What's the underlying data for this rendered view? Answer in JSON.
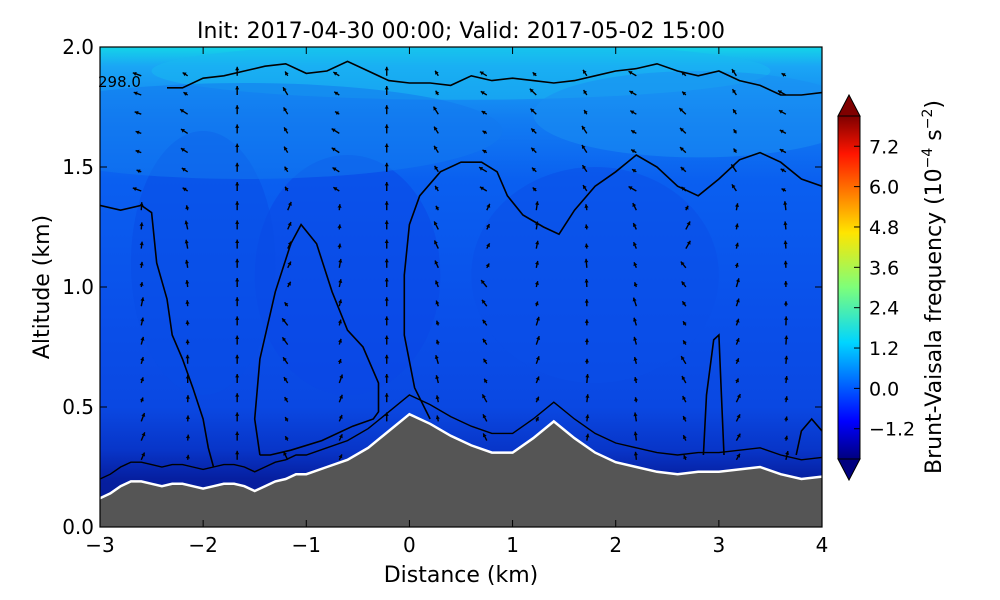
{
  "chart_data": {
    "type": "heatmap",
    "title": "Init: 2017-04-30 00:00; Valid: 2017-05-02 15:00",
    "xlabel": "Distance (km)",
    "ylabel": "Altitude (km)",
    "xlim": [
      -3,
      4
    ],
    "ylim": [
      0.0,
      2.0
    ],
    "xticks": [
      -3,
      -2,
      -1,
      0,
      1,
      2,
      3,
      4
    ],
    "yticks": [
      0.0,
      0.5,
      1.0,
      1.5,
      2.0
    ],
    "xtick_labels": [
      "−3",
      "−2",
      "−1",
      "0",
      "1",
      "2",
      "3",
      "4"
    ],
    "ytick_labels": [
      "0.0",
      "0.5",
      "1.0",
      "1.5",
      "2.0"
    ],
    "colorbar": {
      "label": "Brunt-Vaisala frequency",
      "units": "(10",
      "units_exp1": "−4",
      "units_mid": " s",
      "units_exp2": "−2",
      "units_end": ")",
      "range": [
        -2.1,
        8.1
      ],
      "ticks": [
        7.2,
        6.0,
        4.8,
        3.6,
        2.4,
        1.2,
        0.0,
        -1.2
      ],
      "tick_labels": [
        "7.2",
        "6.0",
        "4.8",
        "3.6",
        "2.4",
        "1.2",
        "0.0",
        "−1.2"
      ],
      "extend": "both",
      "colormap": "jet"
    },
    "contour_label": "298.0",
    "terrain": {
      "color": "#555555",
      "x": [
        -3.0,
        -2.9,
        -2.8,
        -2.7,
        -2.6,
        -2.5,
        -2.4,
        -2.3,
        -2.2,
        -2.1,
        -2.0,
        -1.9,
        -1.8,
        -1.7,
        -1.6,
        -1.5,
        -1.4,
        -1.3,
        -1.2,
        -1.1,
        -1.0,
        -0.8,
        -0.6,
        -0.4,
        -0.2,
        0.0,
        0.2,
        0.4,
        0.6,
        0.8,
        1.0,
        1.2,
        1.4,
        1.6,
        1.8,
        2.0,
        2.2,
        2.4,
        2.6,
        2.8,
        3.0,
        3.2,
        3.4,
        3.6,
        3.8,
        4.0
      ],
      "y": [
        0.12,
        0.14,
        0.17,
        0.19,
        0.19,
        0.18,
        0.17,
        0.18,
        0.18,
        0.17,
        0.16,
        0.17,
        0.18,
        0.18,
        0.17,
        0.15,
        0.17,
        0.19,
        0.2,
        0.22,
        0.22,
        0.25,
        0.28,
        0.33,
        0.4,
        0.47,
        0.43,
        0.38,
        0.34,
        0.31,
        0.31,
        0.37,
        0.44,
        0.37,
        0.31,
        0.27,
        0.25,
        0.23,
        0.22,
        0.23,
        0.23,
        0.24,
        0.25,
        0.22,
        0.2,
        0.21
      ]
    },
    "contours": [
      {
        "x": [
          -2.35,
          -2.2,
          -2.0,
          -1.8,
          -1.6,
          -1.4,
          -1.2,
          -1.0,
          -0.8,
          -0.6,
          -0.4,
          -0.2,
          0.0,
          0.2,
          0.4,
          0.6,
          0.8,
          1.0,
          1.2,
          1.4,
          1.6,
          1.8,
          2.0,
          2.2,
          2.4,
          2.6,
          2.8,
          3.0,
          3.2,
          3.4,
          3.6,
          3.8,
          4.0
        ],
        "y": [
          1.83,
          1.83,
          1.87,
          1.88,
          1.9,
          1.92,
          1.93,
          1.89,
          1.9,
          1.94,
          1.9,
          1.86,
          1.85,
          1.85,
          1.84,
          1.88,
          1.86,
          1.87,
          1.86,
          1.85,
          1.86,
          1.88,
          1.9,
          1.91,
          1.93,
          1.9,
          1.88,
          1.9,
          1.86,
          1.84,
          1.8,
          1.8,
          1.81
        ]
      },
      {
        "x": [
          -3.0,
          -2.8,
          -2.6,
          -2.5,
          -2.45,
          -2.35,
          -2.3,
          -2.2,
          -2.1,
          -2.0,
          -1.95,
          -1.9
        ],
        "y": [
          1.34,
          1.32,
          1.34,
          1.31,
          1.1,
          0.95,
          0.8,
          0.7,
          0.58,
          0.45,
          0.33,
          0.25
        ]
      },
      {
        "x": [
          -1.45,
          -1.5,
          -1.45,
          -1.3,
          -1.15,
          -1.05,
          -0.9,
          -0.75,
          -0.6,
          -0.45,
          -0.3,
          -0.3,
          -0.35,
          -0.55,
          -0.85,
          -1.15,
          -1.35,
          -1.45
        ],
        "y": [
          0.3,
          0.45,
          0.7,
          0.98,
          1.18,
          1.26,
          1.18,
          0.98,
          0.82,
          0.75,
          0.6,
          0.48,
          0.45,
          0.42,
          0.36,
          0.32,
          0.3,
          0.3
        ]
      },
      {
        "x": [
          0.2,
          0.05,
          -0.05,
          -0.05,
          0.0,
          0.1,
          0.3,
          0.5,
          0.7,
          0.85,
          0.95,
          1.1,
          1.3,
          1.45,
          1.6,
          1.8,
          2.0,
          2.2,
          2.4,
          2.6,
          2.8,
          3.0,
          3.2,
          3.4,
          3.6,
          3.8,
          4.0
        ],
        "y": [
          0.45,
          0.58,
          0.8,
          1.05,
          1.26,
          1.38,
          1.48,
          1.52,
          1.52,
          1.48,
          1.38,
          1.3,
          1.25,
          1.22,
          1.32,
          1.42,
          1.48,
          1.55,
          1.5,
          1.42,
          1.38,
          1.45,
          1.53,
          1.56,
          1.52,
          1.45,
          1.42
        ]
      },
      {
        "x": [
          2.85,
          2.88,
          2.95,
          3.0,
          3.02,
          3.05
        ],
        "y": [
          0.3,
          0.55,
          0.78,
          0.8,
          0.6,
          0.3
        ]
      },
      {
        "x": [
          3.75,
          3.8,
          3.9,
          4.0
        ],
        "y": [
          0.3,
          0.4,
          0.45,
          0.4
        ]
      }
    ]
  }
}
